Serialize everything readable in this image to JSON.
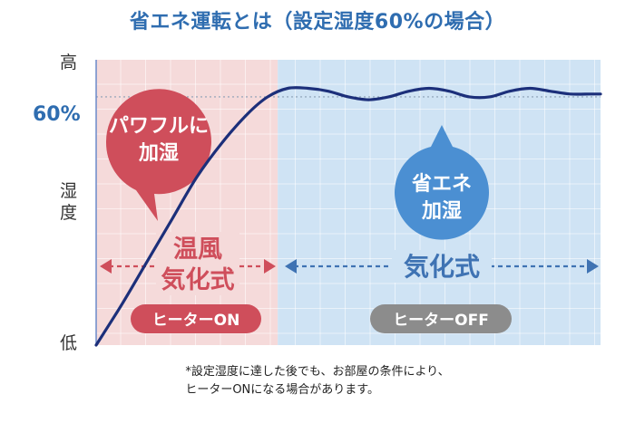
{
  "chart_data": {
    "type": "line",
    "title": "省エネ運転とは（設定湿度60%の場合）",
    "y_axis": {
      "title": "湿度",
      "high_label": "高",
      "low_label": "低",
      "tick_label": "60%"
    },
    "regions": [
      {
        "mode": "温風気化式",
        "mode_lines": [
          "温風",
          "気化式"
        ],
        "heater": "ヒーターON",
        "bubble_lines": [
          "パワフルに",
          "加湿"
        ],
        "x_range": [
          0,
          0.36
        ]
      },
      {
        "mode": "気化式",
        "mode_lines": [
          "気化式"
        ],
        "heater": "ヒーターOFF",
        "bubble_lines": [
          "省エネ",
          "加湿"
        ],
        "x_range": [
          0.36,
          1.0
        ]
      }
    ],
    "series": [
      {
        "x": [
          0,
          0.05,
          0.1,
          0.15,
          0.2,
          0.25,
          0.3,
          0.34,
          0.38,
          0.42,
          0.46,
          0.5,
          0.54,
          0.58,
          0.62,
          0.66,
          0.7,
          0.74,
          0.78,
          0.82,
          0.86,
          0.9,
          0.94,
          0.98,
          1.0
        ],
        "y": [
          0,
          14,
          29,
          44,
          59,
          71,
          81,
          87,
          90,
          90,
          89,
          87,
          86,
          87,
          89,
          90,
          89,
          87,
          87,
          89,
          90,
          89,
          88,
          88,
          88
        ]
      }
    ],
    "setpoint": 87,
    "ylim": [
      0,
      100
    ],
    "grid": true,
    "colors": {
      "heater_on_region": "#f5dada",
      "heater_off_region": "#cfe3f4",
      "on_accent": "#cf4e5b",
      "off_accent": "#3f73b3",
      "line": "#1c2f7a",
      "off_badge": "#8c8c8c",
      "off_bubble": "#4b8fd2"
    }
  },
  "footnote": {
    "line1": "*設定湿度に達した後でも、お部屋の条件により、",
    "line2": "ヒーターONになる場合があります。"
  }
}
